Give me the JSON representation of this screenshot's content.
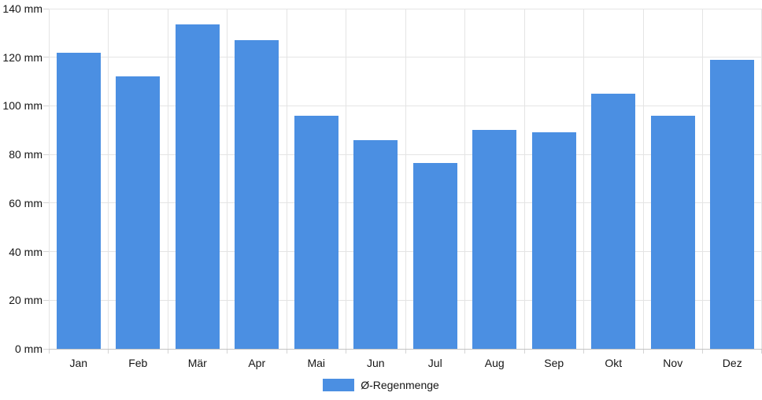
{
  "chart_data": {
    "type": "bar",
    "title": "",
    "xlabel": "",
    "ylabel": "",
    "y_unit": "mm",
    "categories": [
      "Jan",
      "Feb",
      "Mär",
      "Apr",
      "Mai",
      "Jun",
      "Jul",
      "Aug",
      "Sep",
      "Okt",
      "Nov",
      "Dez"
    ],
    "series": [
      {
        "name": "Ø-Regenmenge",
        "values": [
          122,
          112,
          133.5,
          127,
          96,
          86,
          76.5,
          90,
          89,
          105,
          96,
          119
        ]
      }
    ],
    "ylim": [
      0,
      140
    ],
    "y_tick_step": 20,
    "y_tick_labels": [
      "0 mm",
      "20 mm",
      "40 mm",
      "60 mm",
      "80 mm",
      "100 mm",
      "120 mm",
      "140 mm"
    ],
    "grid": true,
    "legend_position": "bottom"
  },
  "legend": {
    "label": "Ø-Regenmenge"
  },
  "colors": {
    "bar": "#4b8fe2",
    "gridline": "#e4e4e4",
    "baseline": "#c4c4c4",
    "tick": "#d4d4d4",
    "text": "#161616"
  }
}
